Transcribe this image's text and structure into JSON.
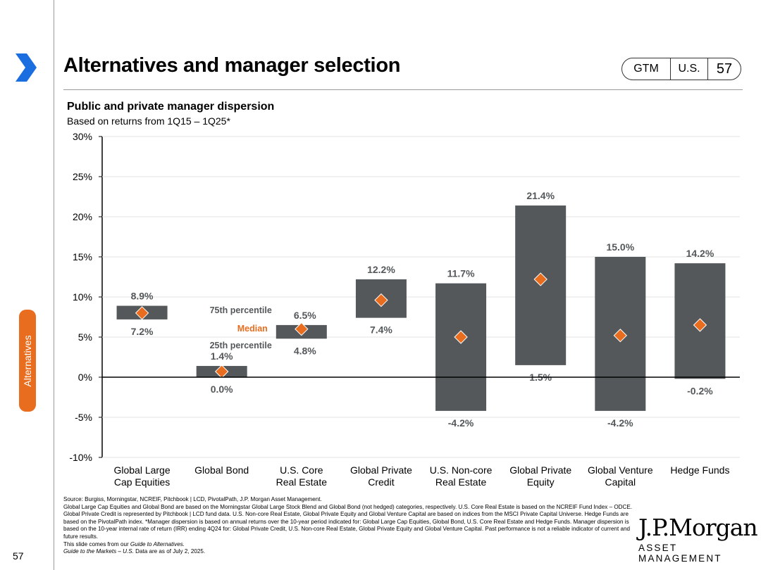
{
  "header": {
    "title": "Alternatives and manager selection",
    "badges": [
      "GTM",
      "U.S.",
      "57"
    ]
  },
  "sidebar": {
    "section_tab": "Alternatives",
    "page_number": "57"
  },
  "colors": {
    "bar": "#54585a",
    "median": "#e86d1f",
    "accent": "#e86d1f",
    "brand_blue": "#1a6ee0"
  },
  "chart_data": {
    "type": "floating-bar",
    "title": "Public and private manager dispersion",
    "subtitle": "Based on returns from 1Q15 – 1Q25*",
    "ylim": [
      -10,
      30
    ],
    "yticks": [
      30,
      25,
      20,
      15,
      10,
      5,
      0,
      -5,
      -10
    ],
    "ytick_labels": [
      "30%",
      "25%",
      "20%",
      "15%",
      "10%",
      "5%",
      "0%",
      "-5%",
      "-10%"
    ],
    "categories": [
      {
        "line1": "Global Large",
        "line2": "Cap Equities"
      },
      {
        "line1": "Global Bond",
        "line2": ""
      },
      {
        "line1": "U.S. Core",
        "line2": "Real Estate"
      },
      {
        "line1": "Global Private",
        "line2": "Credit"
      },
      {
        "line1": "U.S. Non-core",
        "line2": "Real Estate"
      },
      {
        "line1": "Global Private",
        "line2": "Equity"
      },
      {
        "line1": "Global Venture",
        "line2": "Capital"
      },
      {
        "line1": "Hedge Funds",
        "line2": ""
      }
    ],
    "series": [
      {
        "name": "75th percentile",
        "values": [
          8.9,
          1.4,
          6.5,
          12.2,
          11.7,
          21.4,
          15.0,
          14.2
        ]
      },
      {
        "name": "25th percentile",
        "values": [
          7.2,
          0.0,
          4.8,
          7.4,
          -4.2,
          1.5,
          -4.2,
          -0.2
        ]
      },
      {
        "name": "Median",
        "values": [
          8.0,
          0.7,
          6.0,
          9.6,
          5.0,
          12.2,
          5.2,
          6.5
        ]
      }
    ],
    "top_labels": [
      "8.9%",
      "1.4%",
      "6.5%",
      "12.2%",
      "11.7%",
      "21.4%",
      "15.0%",
      "14.2%"
    ],
    "bottom_labels": [
      "7.2%",
      "0.0%",
      "4.8%",
      "7.4%",
      "-4.2%",
      "1.5%",
      "-4.2%",
      "-0.2%"
    ],
    "legend": {
      "p75": "75th percentile",
      "median": "Median",
      "p25": "25th percentile"
    }
  },
  "footnotes": {
    "source": "Source: Burgiss, Morningstar, NCREIF, Pitchbook | LCD, PivotalPath, J.P. Morgan Asset Management.",
    "body": "Global Large Cap Equities and Global Bond are based on the Morningstar Global Large Stock Blend and Global Bond (not hedged) categories, respectively. U.S. Core Real Estate is based on the NCREIF Fund Index – ODCE. Global Private Credit is represented by Pitchbook | LCD fund data. U.S. Non-core Real Estate, Global Private Equity and Global Venture Capital are based on indices from the MSCI Private Capital Universe. Hedge Funds are based on the PivotalPath index. *Manager dispersion is based on annual returns over the 10-year period indicated for: Global Large Cap Equities, Global Bond, U.S. Core Real Estate and Hedge Funds. Manager dispersion is based on the 10-year internal rate of return (IRR) ending 4Q24 for: Global Private Credit, U.S. Non-core Real Estate, Global Private Equity and Global Venture Capital. Past performance is not a reliable indicator of current and future results.",
    "line3_prefix": "This slide comes from our ",
    "line3_italic": "Guide to Alternatives.",
    "line4_italic": "Guide to the Markets – U.S.",
    "line4_suffix": " Data are as of July 2, 2025."
  },
  "logo": {
    "main": "J.P.Morgan",
    "sub": "ASSET MANAGEMENT"
  }
}
